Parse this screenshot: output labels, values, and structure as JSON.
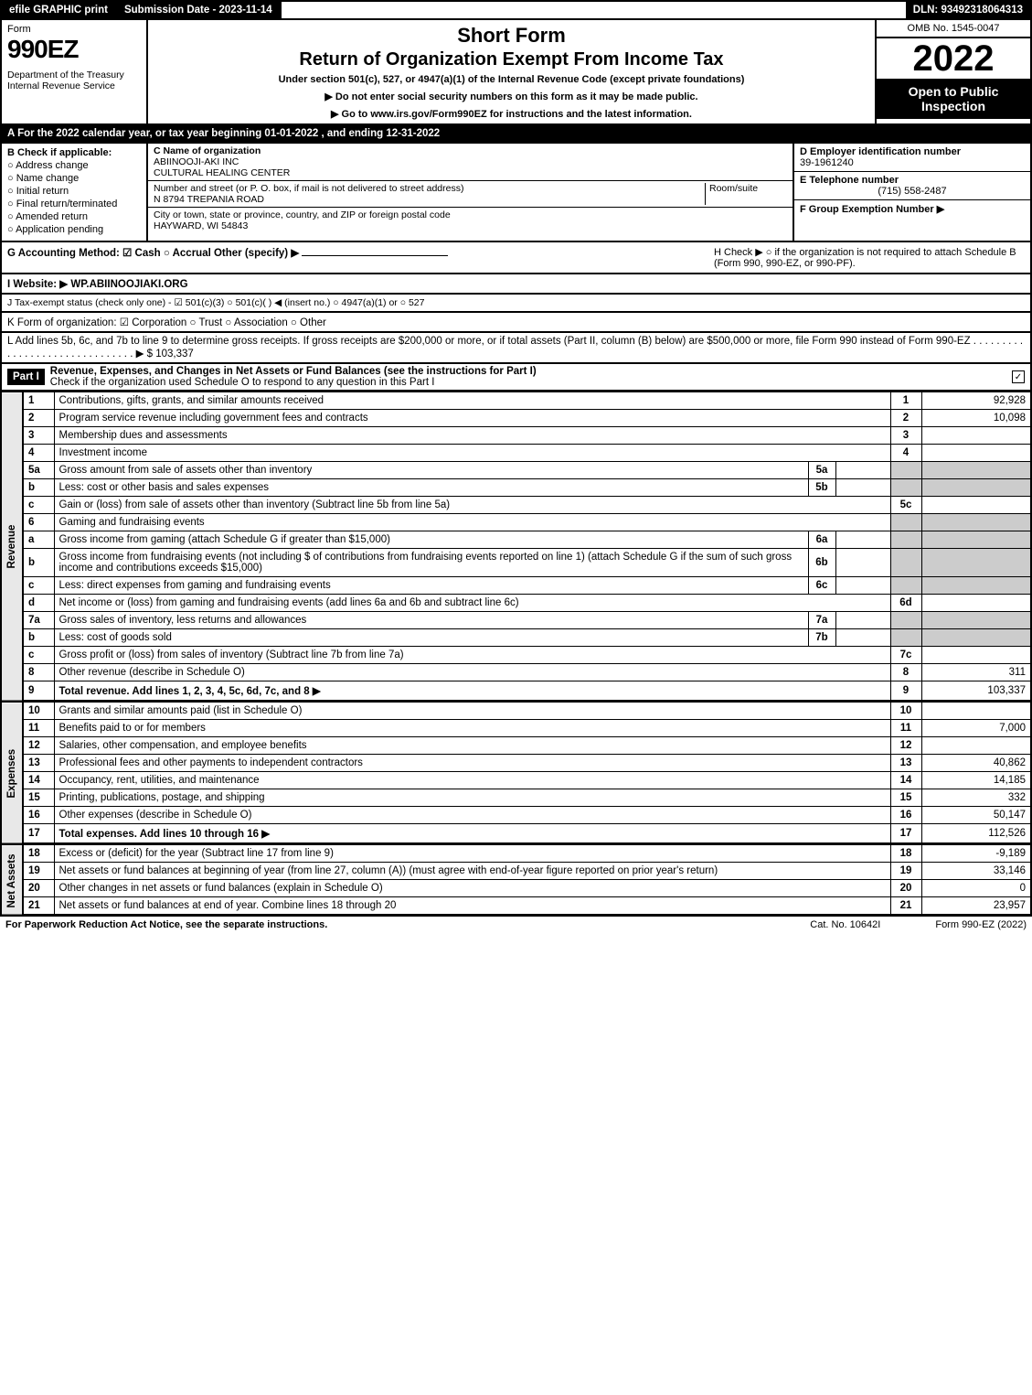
{
  "topbar": {
    "efile": "efile GRAPHIC print",
    "submission": "Submission Date - 2023-11-14",
    "dln": "DLN: 93492318064313"
  },
  "header": {
    "form_word": "Form",
    "form_num": "990EZ",
    "dept": "Department of the Treasury\nInternal Revenue Service",
    "short_form": "Short Form",
    "title": "Return of Organization Exempt From Income Tax",
    "under": "Under section 501(c), 527, or 4947(a)(1) of the Internal Revenue Code (except private foundations)",
    "no_ssn": "▶ Do not enter social security numbers on this form as it may be made public.",
    "goto": "▶ Go to www.irs.gov/Form990EZ for instructions and the latest information.",
    "omb": "OMB No. 1545-0047",
    "year": "2022",
    "open": "Open to Public Inspection"
  },
  "row_a": "A  For the 2022 calendar year, or tax year beginning 01-01-2022 , and ending 12-31-2022",
  "section_b": {
    "label": "B  Check if applicable:",
    "items": [
      "Address change",
      "Name change",
      "Initial return",
      "Final return/terminated",
      "Amended return",
      "Application pending"
    ]
  },
  "section_c": {
    "name_lbl": "C Name of organization",
    "name1": "ABIINOOJI-AKI INC",
    "name2": "CULTURAL HEALING CENTER",
    "street_lbl": "Number and street (or P. O. box, if mail is not delivered to street address)",
    "room_lbl": "Room/suite",
    "street": "N 8794 TREPANIA ROAD",
    "city_lbl": "City or town, state or province, country, and ZIP or foreign postal code",
    "city": "HAYWARD, WI  54843"
  },
  "section_de": {
    "d_lbl": "D Employer identification number",
    "d_val": "39-1961240",
    "e_lbl": "E Telephone number",
    "e_val": "(715) 558-2487",
    "f_lbl": "F Group Exemption Number  ▶"
  },
  "row_g": {
    "g": "G Accounting Method:   ☑ Cash   ○ Accrual   Other (specify) ▶",
    "h": "H  Check ▶  ○  if the organization is not required to attach Schedule B (Form 990, 990-EZ, or 990-PF)."
  },
  "row_i": "I Website: ▶ WP.ABIINOOJIAKI.ORG",
  "row_j": "J Tax-exempt status (check only one) -  ☑ 501(c)(3)  ○ 501(c)(  ) ◀ (insert no.)  ○ 4947(a)(1) or  ○ 527",
  "row_k": "K Form of organization:   ☑ Corporation   ○ Trust   ○ Association   ○ Other",
  "row_l": "L Add lines 5b, 6c, and 7b to line 9 to determine gross receipts. If gross receipts are $200,000 or more, or if total assets (Part II, column (B) below) are $500,000 or more, file Form 990 instead of Form 990-EZ . . . . . . . . . . . . . . . . . . . . . . . . . . . . . . .  ▶ $ 103,337",
  "part1": {
    "label": "Part I",
    "title": "Revenue, Expenses, and Changes in Net Assets or Fund Balances (see the instructions for Part I)",
    "check": "Check if the organization used Schedule O to respond to any question in this Part I"
  },
  "revenue": {
    "tab": "Revenue",
    "lines": [
      {
        "n": "1",
        "d": "Contributions, gifts, grants, and similar amounts received",
        "r": "1",
        "v": "92,928"
      },
      {
        "n": "2",
        "d": "Program service revenue including government fees and contracts",
        "r": "2",
        "v": "10,098"
      },
      {
        "n": "3",
        "d": "Membership dues and assessments",
        "r": "3",
        "v": ""
      },
      {
        "n": "4",
        "d": "Investment income",
        "r": "4",
        "v": ""
      },
      {
        "n": "5a",
        "d": "Gross amount from sale of assets other than inventory",
        "sub": "5a",
        "shade": true
      },
      {
        "n": "b",
        "d": "Less: cost or other basis and sales expenses",
        "sub": "5b",
        "shade": true
      },
      {
        "n": "c",
        "d": "Gain or (loss) from sale of assets other than inventory (Subtract line 5b from line 5a)",
        "r": "5c",
        "v": ""
      },
      {
        "n": "6",
        "d": "Gaming and fundraising events",
        "shade": true,
        "noright": true
      },
      {
        "n": "a",
        "d": "Gross income from gaming (attach Schedule G if greater than $15,000)",
        "sub": "6a",
        "shade": true
      },
      {
        "n": "b",
        "d": "Gross income from fundraising events (not including $                     of contributions from fundraising events reported on line 1) (attach Schedule G if the sum of such gross income and contributions exceeds $15,000)",
        "sub": "6b",
        "shade": true
      },
      {
        "n": "c",
        "d": "Less: direct expenses from gaming and fundraising events",
        "sub": "6c",
        "shade": true
      },
      {
        "n": "d",
        "d": "Net income or (loss) from gaming and fundraising events (add lines 6a and 6b and subtract line 6c)",
        "r": "6d",
        "v": ""
      },
      {
        "n": "7a",
        "d": "Gross sales of inventory, less returns and allowances",
        "sub": "7a",
        "shade": true
      },
      {
        "n": "b",
        "d": "Less: cost of goods sold",
        "sub": "7b",
        "shade": true
      },
      {
        "n": "c",
        "d": "Gross profit or (loss) from sales of inventory (Subtract line 7b from line 7a)",
        "r": "7c",
        "v": ""
      },
      {
        "n": "8",
        "d": "Other revenue (describe in Schedule O)",
        "r": "8",
        "v": "311"
      },
      {
        "n": "9",
        "d": "Total revenue. Add lines 1, 2, 3, 4, 5c, 6d, 7c, and 8",
        "r": "9",
        "v": "103,337",
        "bold": true,
        "arrow": true
      }
    ]
  },
  "expenses": {
    "tab": "Expenses",
    "lines": [
      {
        "n": "10",
        "d": "Grants and similar amounts paid (list in Schedule O)",
        "r": "10",
        "v": ""
      },
      {
        "n": "11",
        "d": "Benefits paid to or for members",
        "r": "11",
        "v": "7,000"
      },
      {
        "n": "12",
        "d": "Salaries, other compensation, and employee benefits",
        "r": "12",
        "v": ""
      },
      {
        "n": "13",
        "d": "Professional fees and other payments to independent contractors",
        "r": "13",
        "v": "40,862"
      },
      {
        "n": "14",
        "d": "Occupancy, rent, utilities, and maintenance",
        "r": "14",
        "v": "14,185"
      },
      {
        "n": "15",
        "d": "Printing, publications, postage, and shipping",
        "r": "15",
        "v": "332"
      },
      {
        "n": "16",
        "d": "Other expenses (describe in Schedule O)",
        "r": "16",
        "v": "50,147"
      },
      {
        "n": "17",
        "d": "Total expenses. Add lines 10 through 16",
        "r": "17",
        "v": "112,526",
        "bold": true,
        "arrow": true
      }
    ]
  },
  "netassets": {
    "tab": "Net Assets",
    "lines": [
      {
        "n": "18",
        "d": "Excess or (deficit) for the year (Subtract line 17 from line 9)",
        "r": "18",
        "v": "-9,189"
      },
      {
        "n": "19",
        "d": "Net assets or fund balances at beginning of year (from line 27, column (A)) (must agree with end-of-year figure reported on prior year's return)",
        "r": "19",
        "v": "33,146"
      },
      {
        "n": "20",
        "d": "Other changes in net assets or fund balances (explain in Schedule O)",
        "r": "20",
        "v": "0"
      },
      {
        "n": "21",
        "d": "Net assets or fund balances at end of year. Combine lines 18 through 20",
        "r": "21",
        "v": "23,957"
      }
    ]
  },
  "footer": {
    "left": "For Paperwork Reduction Act Notice, see the separate instructions.",
    "mid": "Cat. No. 10642I",
    "right": "Form 990-EZ (2022)"
  }
}
